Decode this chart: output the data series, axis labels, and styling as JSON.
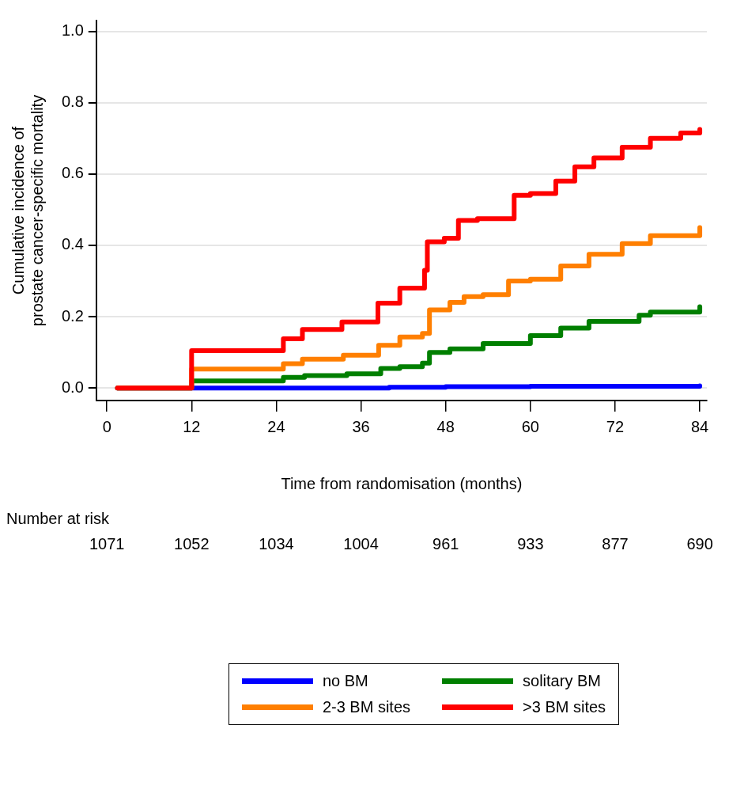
{
  "chart_data": {
    "type": "step",
    "xlabel": "Time from randomisation (months)",
    "ylabel": "Cumulative incidence of\nprostate cancer-specific mortality",
    "xlim": [
      -1.5,
      85
    ],
    "xticks": [
      0,
      12,
      24,
      36,
      48,
      60,
      72,
      84
    ],
    "ylim": [
      -0.035,
      1.03
    ],
    "yticks": [
      {
        "value": 0,
        "label": "0.0"
      },
      {
        "value": 0.2,
        "label": "0.2"
      },
      {
        "value": 0.4,
        "label": "0.4"
      },
      {
        "value": 0.6,
        "label": "0.6"
      },
      {
        "value": 0.8,
        "label": "0.8"
      },
      {
        "value": 1,
        "label": "1.0"
      }
    ],
    "grid": "y",
    "legend": "bottom",
    "marker": "none",
    "line_style": "solid",
    "series": [
      {
        "name": "no BM",
        "color": "#0000ff",
        "x": [
          1.5,
          12,
          40,
          48,
          60,
          84
        ],
        "values": [
          0,
          0,
          0.002,
          0.004,
          0.005,
          0.006
        ]
      },
      {
        "name": "solitary BM",
        "color": "#007f00",
        "x": [
          1.5,
          12,
          25,
          28,
          34,
          38.8,
          41.5,
          44.7,
          45.7,
          48.6,
          53.3,
          60,
          64.3,
          68.3,
          75.4,
          77,
          84
        ],
        "values": [
          0,
          0.02,
          0.03,
          0.035,
          0.04,
          0.055,
          0.06,
          0.07,
          0.1,
          0.11,
          0.125,
          0.147,
          0.168,
          0.187,
          0.204,
          0.213,
          0.228
        ]
      },
      {
        "name": "2-3 BM sites",
        "color": "#ff7f00",
        "x": [
          1.5,
          12,
          25,
          27.7,
          33.5,
          38.5,
          41.5,
          44.7,
          45.7,
          48.6,
          50.6,
          53.3,
          56.9,
          60,
          64.3,
          68.3,
          73,
          77,
          84
        ],
        "values": [
          0,
          0.053,
          0.068,
          0.081,
          0.092,
          0.12,
          0.143,
          0.153,
          0.219,
          0.24,
          0.256,
          0.262,
          0.3,
          0.305,
          0.342,
          0.375,
          0.405,
          0.427,
          0.45
        ]
      },
      {
        "name": ">3 BM sites",
        "color": "#ff0000",
        "x": [
          1.5,
          12,
          25,
          27.7,
          33.3,
          38.4,
          41.5,
          45,
          45.4,
          47.8,
          49.8,
          52.5,
          57.7,
          60,
          63.6,
          66.3,
          69,
          73,
          77,
          81.3,
          84
        ],
        "values": [
          0,
          0.105,
          0.138,
          0.164,
          0.185,
          0.238,
          0.28,
          0.33,
          0.41,
          0.42,
          0.47,
          0.475,
          0.54,
          0.545,
          0.58,
          0.62,
          0.645,
          0.675,
          0.7,
          0.715,
          0.725
        ]
      }
    ],
    "annotations": [
      "Number at risk",
      "1071",
      "1052",
      "1034",
      "1004",
      "961",
      "933",
      "877",
      "690"
    ]
  }
}
